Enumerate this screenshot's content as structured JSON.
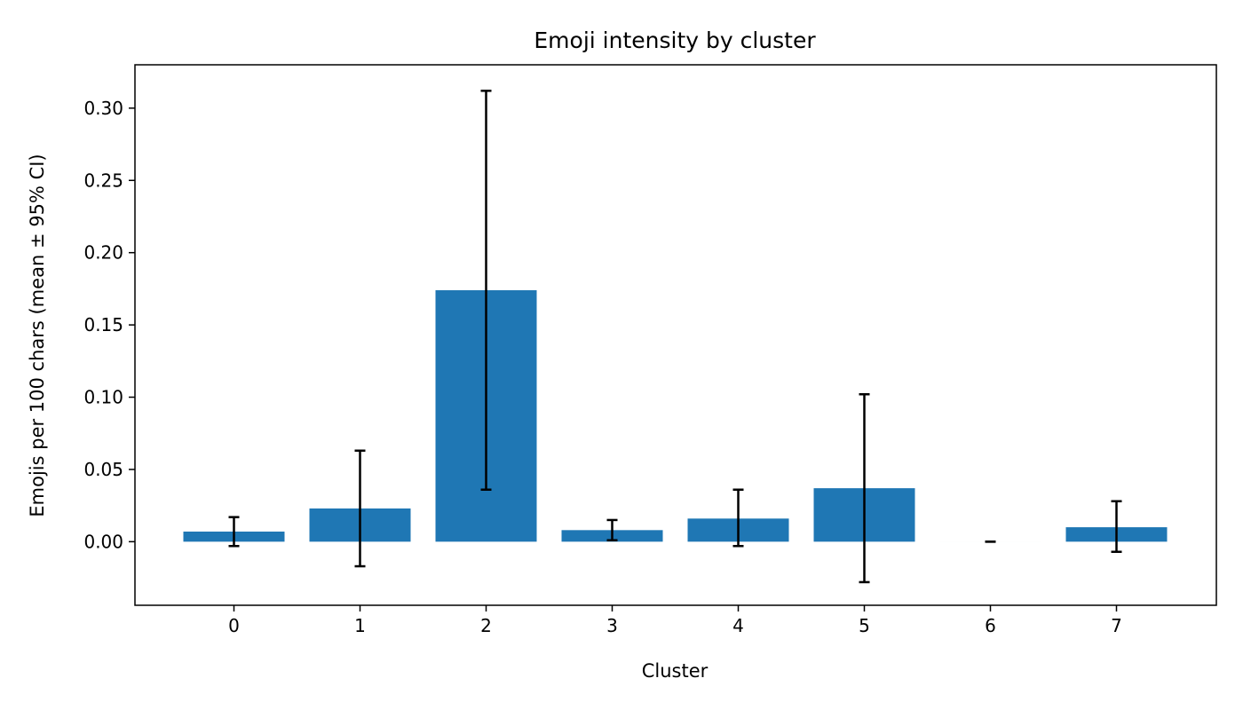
{
  "chart_data": {
    "type": "bar",
    "title": "Emoji intensity by cluster",
    "xlabel": "Cluster",
    "ylabel": "Emojis per 100 chars (mean ± 95% CI)",
    "categories": [
      "0",
      "1",
      "2",
      "3",
      "4",
      "5",
      "6",
      "7"
    ],
    "values": [
      0.007,
      0.023,
      0.174,
      0.008,
      0.016,
      0.037,
      0.0,
      0.01
    ],
    "error_low": [
      -0.003,
      -0.017,
      0.036,
      0.001,
      -0.003,
      -0.028,
      0.0,
      -0.007
    ],
    "error_high": [
      0.017,
      0.063,
      0.312,
      0.015,
      0.036,
      0.102,
      0.0,
      0.028
    ],
    "ylim": [
      -0.044,
      0.33
    ],
    "yticks": [
      0.0,
      0.05,
      0.1,
      0.15,
      0.2,
      0.25,
      0.3
    ],
    "ytick_labels": [
      "0.00",
      "0.05",
      "0.10",
      "0.15",
      "0.20",
      "0.25",
      "0.30"
    ],
    "grid": false,
    "colors": {
      "bar": "#1f77b4",
      "error": "#000000",
      "axis": "#000000"
    }
  }
}
